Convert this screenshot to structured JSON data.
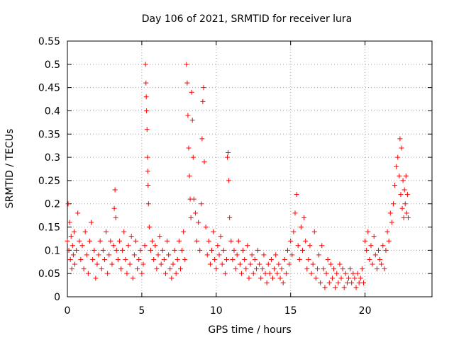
{
  "chart_data": {
    "type": "scatter",
    "title": "Day 106 of 2021, SRMTID for receiver lura",
    "xlabel": "GPS time / hours",
    "ylabel": "SRMTID / TECUs",
    "xlim": [
      0,
      24.5
    ],
    "ylim": [
      0,
      0.55
    ],
    "xticks": [
      0,
      5,
      10,
      15,
      20
    ],
    "xtick_labels": [
      "0",
      "5",
      "10",
      "15",
      "20"
    ],
    "yticks": [
      0,
      0.05,
      0.1,
      0.15,
      0.2,
      0.25,
      0.3,
      0.35,
      0.4,
      0.45,
      0.5,
      0.55
    ],
    "ytick_labels": [
      "0",
      "0.05",
      "0.1",
      "0.15",
      "0.2",
      "0.25",
      "0.3",
      "0.35",
      "0.4",
      "0.45",
      "0.5",
      "0.55"
    ],
    "grid": true,
    "marker": "+",
    "color": "#ff0000",
    "series": [
      {
        "name": "SRMTID",
        "x": [
          0.0,
          0.05,
          0.1,
          0.15,
          0.2,
          0.25,
          0.3,
          0.35,
          0.4,
          0.45,
          0.5,
          0.6,
          0.7,
          0.8,
          0.9,
          1.0,
          1.1,
          1.2,
          1.3,
          1.4,
          1.5,
          1.6,
          1.7,
          1.8,
          1.9,
          2.0,
          2.1,
          2.2,
          2.3,
          2.4,
          2.5,
          2.6,
          2.7,
          2.8,
          2.9,
          3.0,
          3.1,
          3.15,
          3.2,
          3.25,
          3.3,
          3.4,
          3.5,
          3.6,
          3.7,
          3.8,
          3.9,
          4.0,
          4.1,
          4.2,
          4.3,
          4.4,
          4.5,
          4.6,
          4.7,
          4.8,
          4.9,
          5.0,
          5.1,
          5.2,
          5.25,
          5.28,
          5.3,
          5.32,
          5.35,
          5.38,
          5.4,
          5.42,
          5.45,
          5.5,
          5.6,
          5.7,
          5.8,
          5.9,
          6.0,
          6.1,
          6.2,
          6.3,
          6.4,
          6.5,
          6.6,
          6.7,
          6.8,
          6.9,
          7.0,
          7.1,
          7.2,
          7.3,
          7.4,
          7.5,
          7.6,
          7.7,
          7.8,
          7.9,
          8.0,
          8.05,
          8.1,
          8.15,
          8.2,
          8.25,
          8.3,
          8.35,
          8.4,
          8.45,
          8.5,
          8.6,
          8.7,
          8.8,
          8.9,
          9.0,
          9.05,
          9.1,
          9.15,
          9.2,
          9.3,
          9.4,
          9.5,
          9.6,
          9.7,
          9.8,
          9.9,
          10.0,
          10.1,
          10.2,
          10.3,
          10.4,
          10.5,
          10.6,
          10.7,
          10.75,
          10.8,
          10.85,
          10.9,
          11.0,
          11.1,
          11.2,
          11.3,
          11.4,
          11.5,
          11.6,
          11.7,
          11.8,
          11.9,
          12.0,
          12.1,
          12.2,
          12.3,
          12.4,
          12.5,
          12.6,
          12.7,
          12.8,
          12.9,
          13.0,
          13.1,
          13.2,
          13.3,
          13.4,
          13.5,
          13.6,
          13.7,
          13.8,
          13.9,
          14.0,
          14.1,
          14.2,
          14.3,
          14.4,
          14.5,
          14.6,
          14.7,
          14.8,
          14.9,
          15.0,
          15.1,
          15.2,
          15.3,
          15.4,
          15.5,
          15.6,
          15.7,
          15.8,
          15.9,
          16.0,
          16.1,
          16.2,
          16.3,
          16.4,
          16.5,
          16.6,
          16.7,
          16.8,
          16.9,
          17.0,
          17.1,
          17.2,
          17.3,
          17.4,
          17.5,
          17.6,
          17.7,
          17.8,
          17.9,
          18.0,
          18.1,
          18.2,
          18.3,
          18.4,
          18.5,
          18.6,
          18.7,
          18.8,
          18.9,
          19.0,
          19.1,
          19.2,
          19.3,
          19.4,
          19.5,
          19.6,
          19.7,
          19.8,
          19.9,
          20.0,
          20.1,
          20.2,
          20.3,
          20.4,
          20.5,
          20.6,
          20.7,
          20.8,
          20.9,
          21.0,
          21.1,
          21.2,
          21.3,
          21.4,
          21.5,
          21.6,
          21.7,
          21.8,
          21.9,
          22.0,
          22.1,
          22.2,
          22.3,
          22.35,
          22.4,
          22.45,
          22.5,
          22.55,
          22.6,
          22.65,
          22.7,
          22.75,
          22.8,
          22.85,
          22.9
        ],
        "y": [
          0.12,
          0.2,
          0.1,
          0.16,
          0.08,
          0.13,
          0.06,
          0.11,
          0.09,
          0.14,
          0.07,
          0.1,
          0.18,
          0.12,
          0.08,
          0.11,
          0.06,
          0.14,
          0.09,
          0.05,
          0.12,
          0.16,
          0.08,
          0.1,
          0.04,
          0.07,
          0.09,
          0.12,
          0.06,
          0.1,
          0.08,
          0.14,
          0.05,
          0.09,
          0.12,
          0.07,
          0.11,
          0.19,
          0.23,
          0.17,
          0.1,
          0.08,
          0.12,
          0.06,
          0.1,
          0.14,
          0.08,
          0.05,
          0.11,
          0.07,
          0.13,
          0.04,
          0.09,
          0.12,
          0.06,
          0.08,
          0.1,
          0.05,
          0.07,
          0.11,
          0.5,
          0.46,
          0.43,
          0.4,
          0.36,
          0.3,
          0.27,
          0.24,
          0.2,
          0.15,
          0.1,
          0.12,
          0.08,
          0.11,
          0.06,
          0.09,
          0.13,
          0.07,
          0.1,
          0.08,
          0.05,
          0.12,
          0.09,
          0.06,
          0.04,
          0.07,
          0.1,
          0.05,
          0.08,
          0.12,
          0.06,
          0.1,
          0.14,
          0.08,
          0.5,
          0.46,
          0.39,
          0.32,
          0.26,
          0.21,
          0.17,
          0.44,
          0.38,
          0.3,
          0.21,
          0.18,
          0.12,
          0.16,
          0.1,
          0.2,
          0.34,
          0.42,
          0.45,
          0.29,
          0.15,
          0.09,
          0.12,
          0.07,
          0.1,
          0.14,
          0.08,
          0.06,
          0.11,
          0.09,
          0.13,
          0.07,
          0.1,
          0.05,
          0.08,
          0.3,
          0.31,
          0.25,
          0.17,
          0.12,
          0.08,
          0.1,
          0.06,
          0.09,
          0.12,
          0.07,
          0.05,
          0.1,
          0.08,
          0.06,
          0.11,
          0.04,
          0.07,
          0.09,
          0.05,
          0.08,
          0.06,
          0.1,
          0.07,
          0.04,
          0.06,
          0.09,
          0.05,
          0.03,
          0.07,
          0.05,
          0.08,
          0.04,
          0.06,
          0.09,
          0.05,
          0.07,
          0.04,
          0.06,
          0.03,
          0.08,
          0.05,
          0.1,
          0.07,
          0.12,
          0.09,
          0.14,
          0.18,
          0.22,
          0.11,
          0.08,
          0.15,
          0.1,
          0.17,
          0.12,
          0.06,
          0.08,
          0.11,
          0.05,
          0.07,
          0.14,
          0.04,
          0.06,
          0.09,
          0.03,
          0.11,
          0.06,
          0.02,
          0.05,
          0.08,
          0.03,
          0.07,
          0.04,
          0.06,
          0.02,
          0.05,
          0.03,
          0.07,
          0.04,
          0.06,
          0.02,
          0.05,
          0.03,
          0.04,
          0.06,
          0.03,
          0.05,
          0.04,
          0.02,
          0.05,
          0.03,
          0.04,
          0.06,
          0.03,
          0.12,
          0.1,
          0.14,
          0.08,
          0.11,
          0.07,
          0.13,
          0.09,
          0.06,
          0.1,
          0.08,
          0.07,
          0.11,
          0.06,
          0.1,
          0.14,
          0.12,
          0.18,
          0.16,
          0.2,
          0.24,
          0.28,
          0.3,
          0.26,
          0.34,
          0.22,
          0.32,
          0.19,
          0.25,
          0.17,
          0.23,
          0.2,
          0.26,
          0.18,
          0.22,
          0.17
        ]
      }
    ]
  }
}
